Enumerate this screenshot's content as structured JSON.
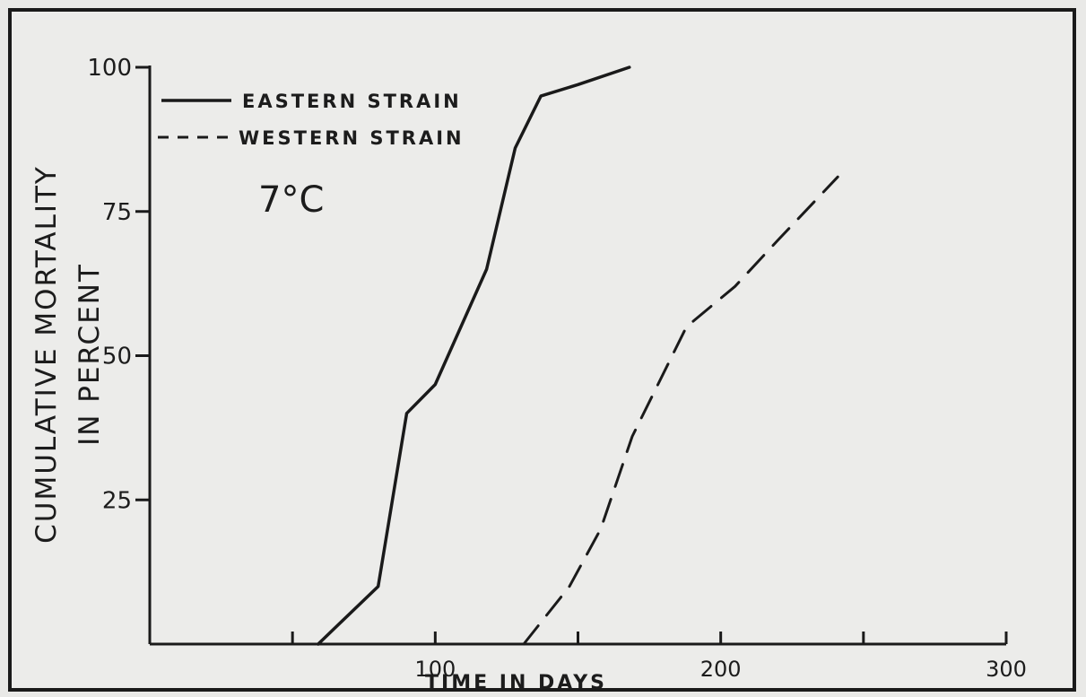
{
  "chart_data": {
    "type": "line",
    "title": "",
    "annotation": "7°C",
    "xlabel": "TIME IN DAYS",
    "ylabel_line1": "CUMULATIVE MORTALITY",
    "ylabel_line2": "IN PERCENT",
    "xlim": [
      0,
      300
    ],
    "ylim": [
      0,
      100
    ],
    "x_ticks": [
      50,
      100,
      150,
      200,
      250,
      300
    ],
    "x_tick_labels": [
      {
        "value": 100,
        "label": "100"
      },
      {
        "value": 200,
        "label": "200"
      },
      {
        "value": 300,
        "label": "300"
      }
    ],
    "y_ticks": [
      25,
      50,
      75,
      100
    ],
    "y_tick_labels": [
      {
        "value": 25,
        "label": "25"
      },
      {
        "value": 50,
        "label": "50"
      },
      {
        "value": 75,
        "label": "75"
      },
      {
        "value": 100,
        "label": "100"
      }
    ],
    "grid": false,
    "legend_position": "top-left",
    "series": [
      {
        "name": "EASTERN STRAIN",
        "style": "solid",
        "points": [
          [
            59,
            0
          ],
          [
            80,
            10
          ],
          [
            90,
            40
          ],
          [
            100,
            45
          ],
          [
            118,
            65
          ],
          [
            128,
            86
          ],
          [
            137,
            95
          ],
          [
            150,
            97
          ],
          [
            168,
            100
          ]
        ]
      },
      {
        "name": "WESTERN STRAIN",
        "style": "dashed",
        "points": [
          [
            131,
            0
          ],
          [
            147,
            10
          ],
          [
            158,
            20
          ],
          [
            169,
            36
          ],
          [
            188,
            55
          ],
          [
            205,
            62
          ],
          [
            220,
            70
          ],
          [
            241,
            81
          ]
        ]
      }
    ]
  }
}
